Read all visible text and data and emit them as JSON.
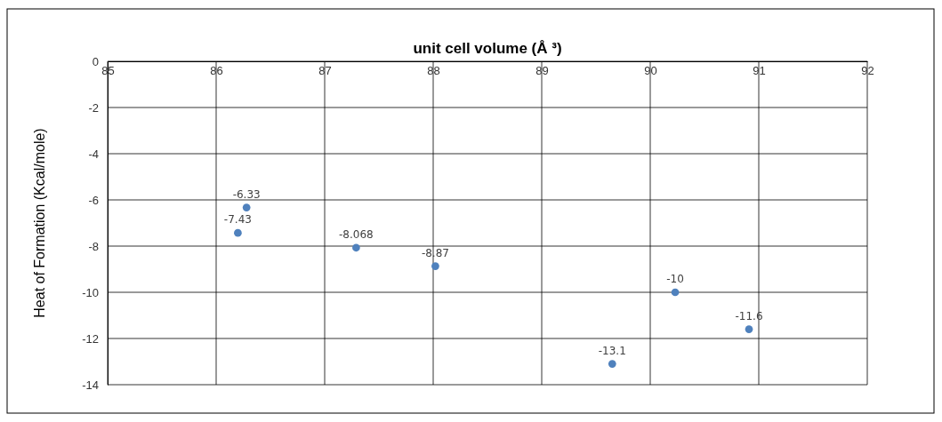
{
  "chart_data": {
    "type": "scatter",
    "title": "unit cell volume (Å ³)",
    "ylabel": "Heat of Formation (Kcal/mole)",
    "x": [
      86.28,
      86.2,
      87.29,
      88.02,
      89.65,
      90.23,
      90.91
    ],
    "values": [
      -6.33,
      -7.43,
      -8.068,
      -8.87,
      -13.1,
      -10,
      -11.6
    ],
    "color": "#4f81bd",
    "marker": "circle",
    "data_labels": true,
    "grid": true,
    "xlim": [
      85,
      92
    ],
    "xticks": [
      85,
      86,
      87,
      88,
      89,
      90,
      91,
      92
    ],
    "ylim": [
      -14,
      0
    ],
    "yticks": [
      0,
      -2,
      -4,
      -6,
      -8,
      -10,
      -12,
      -14
    ]
  }
}
